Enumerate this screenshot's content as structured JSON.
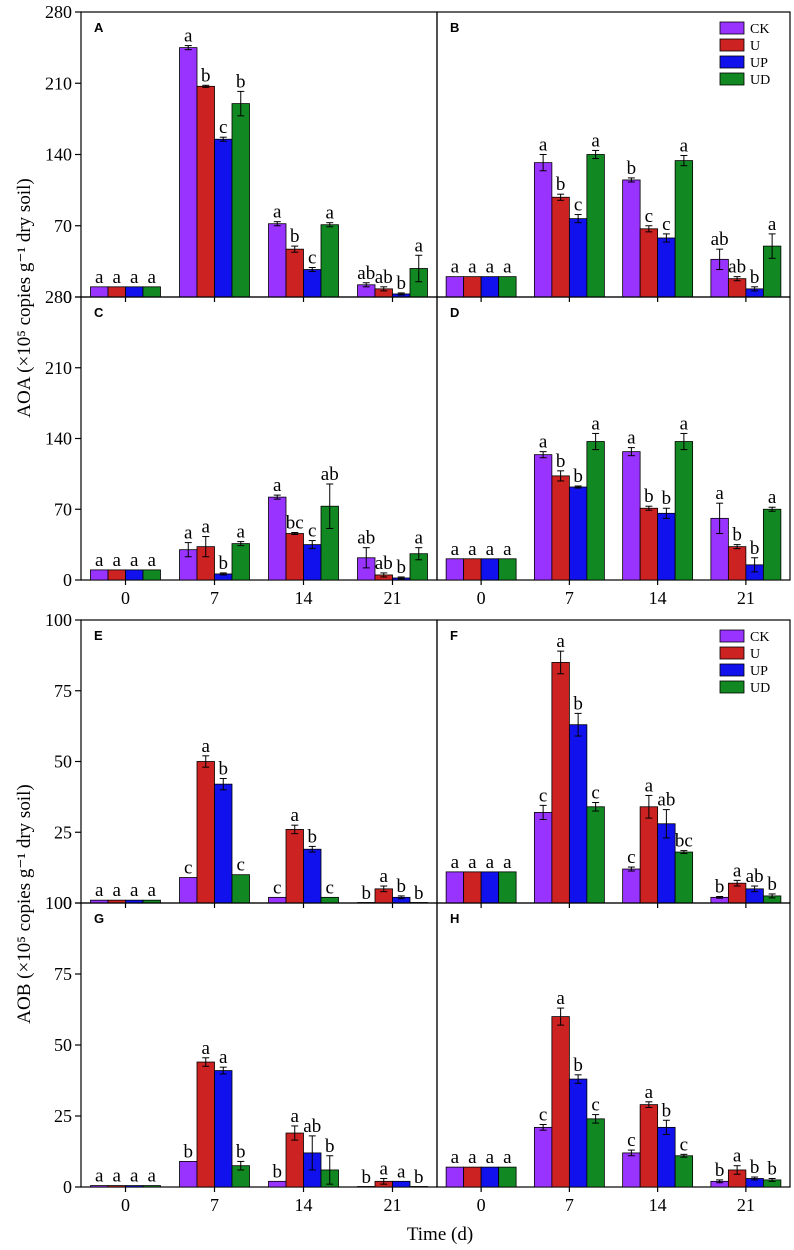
{
  "colors": {
    "CK": "#9933ff",
    "U": "#cc2222",
    "UP": "#1111ee",
    "UD": "#118822"
  },
  "figure": {
    "xlabel": "Time (d)",
    "ylabel_aoa": "AOA (×10⁵ copies g⁻¹ dry soil)",
    "ylabel_aob": "AOB (×10⁵ copies g⁻¹ dry soil)"
  },
  "legend": [
    "CK",
    "U",
    "UP",
    "UD"
  ],
  "chart_data": [
    {
      "panel": "A",
      "type": "bar",
      "categories": [
        "0",
        "7",
        "14",
        "21"
      ],
      "xlabel": "",
      "ylabel": "AOA (×10⁵ copies g⁻¹ dry soil)",
      "ylim": [
        0,
        280
      ],
      "yticks": [
        0,
        70,
        140,
        210,
        280
      ],
      "series": [
        {
          "name": "CK",
          "values": [
            10,
            245,
            72,
            12
          ],
          "errors": [
            0,
            2,
            2,
            2
          ],
          "letters": [
            "a",
            "a",
            "a",
            "ab"
          ]
        },
        {
          "name": "U",
          "values": [
            10,
            207,
            47,
            8
          ],
          "errors": [
            0,
            1,
            3,
            2
          ],
          "letters": [
            "a",
            "b",
            "b",
            "ab"
          ]
        },
        {
          "name": "UP",
          "values": [
            10,
            155,
            27,
            3
          ],
          "errors": [
            0,
            2,
            2,
            1
          ],
          "letters": [
            "a",
            "c",
            "c",
            "b"
          ]
        },
        {
          "name": "UD",
          "values": [
            10,
            190,
            71,
            28
          ],
          "errors": [
            0,
            12,
            2,
            13
          ],
          "letters": [
            "a",
            "b",
            "a",
            "a"
          ]
        }
      ]
    },
    {
      "panel": "B",
      "type": "bar",
      "categories": [
        "0",
        "7",
        "14",
        "21"
      ],
      "xlabel": "",
      "ylabel": "",
      "ylim": [
        0,
        280
      ],
      "yticks": [
        0,
        70,
        140,
        210,
        280
      ],
      "series": [
        {
          "name": "CK",
          "values": [
            20,
            132,
            115,
            37
          ],
          "errors": [
            0,
            8,
            2,
            10
          ],
          "letters": [
            "a",
            "a",
            "b",
            "ab"
          ]
        },
        {
          "name": "U",
          "values": [
            20,
            98,
            67,
            18
          ],
          "errors": [
            0,
            3,
            3,
            2
          ],
          "letters": [
            "a",
            "b",
            "c",
            "ab"
          ]
        },
        {
          "name": "UP",
          "values": [
            20,
            77,
            58,
            8
          ],
          "errors": [
            0,
            4,
            4,
            2
          ],
          "letters": [
            "a",
            "c",
            "c",
            "b"
          ]
        },
        {
          "name": "UD",
          "values": [
            20,
            140,
            134,
            50
          ],
          "errors": [
            0,
            4,
            5,
            12
          ],
          "letters": [
            "a",
            "a",
            "a",
            "a"
          ]
        }
      ]
    },
    {
      "panel": "C",
      "type": "bar",
      "categories": [
        "0",
        "7",
        "14",
        "21"
      ],
      "xlabel": "",
      "ylabel": "",
      "ylim": [
        0,
        280
      ],
      "yticks": [
        0,
        70,
        140,
        210,
        280
      ],
      "series": [
        {
          "name": "CK",
          "values": [
            10,
            30,
            82,
            22
          ],
          "errors": [
            0,
            7,
            2,
            10
          ],
          "letters": [
            "a",
            "a",
            "a",
            "ab"
          ]
        },
        {
          "name": "U",
          "values": [
            10,
            33,
            46,
            5
          ],
          "errors": [
            0,
            10,
            1,
            2
          ],
          "letters": [
            "a",
            "a",
            "bc",
            "ab"
          ]
        },
        {
          "name": "UP",
          "values": [
            10,
            6,
            35,
            2
          ],
          "errors": [
            0,
            1,
            4,
            1
          ],
          "letters": [
            "a",
            "b",
            "c",
            "b"
          ]
        },
        {
          "name": "UD",
          "values": [
            10,
            36,
            73,
            26
          ],
          "errors": [
            0,
            2,
            22,
            6
          ],
          "letters": [
            "a",
            "a",
            "ab",
            "a"
          ]
        }
      ]
    },
    {
      "panel": "D",
      "type": "bar",
      "categories": [
        "0",
        "7",
        "14",
        "21"
      ],
      "xlabel": "",
      "ylabel": "",
      "ylim": [
        0,
        280
      ],
      "yticks": [
        0,
        70,
        140,
        210,
        280
      ],
      "series": [
        {
          "name": "CK",
          "values": [
            21,
            124,
            127,
            61
          ],
          "errors": [
            0,
            3,
            4,
            15
          ],
          "letters": [
            "a",
            "a",
            "a",
            "a"
          ]
        },
        {
          "name": "U",
          "values": [
            21,
            103,
            71,
            33
          ],
          "errors": [
            0,
            5,
            2,
            2
          ],
          "letters": [
            "a",
            "b",
            "b",
            "b"
          ]
        },
        {
          "name": "UP",
          "values": [
            21,
            92,
            66,
            15
          ],
          "errors": [
            0,
            1,
            5,
            7
          ],
          "letters": [
            "a",
            "b",
            "b",
            "b"
          ]
        },
        {
          "name": "UD",
          "values": [
            21,
            137,
            137,
            70
          ],
          "errors": [
            0,
            8,
            8,
            2
          ],
          "letters": [
            "a",
            "a",
            "a",
            "a"
          ]
        }
      ]
    },
    {
      "panel": "E",
      "type": "bar",
      "categories": [
        "0",
        "7",
        "14",
        "21"
      ],
      "xlabel": "",
      "ylabel": "AOB (×10⁵ copies g⁻¹ dry soil)",
      "ylim": [
        0,
        100
      ],
      "yticks": [
        0,
        25,
        50,
        75,
        100
      ],
      "series": [
        {
          "name": "CK",
          "values": [
            1,
            9,
            2,
            0
          ],
          "errors": [
            0,
            0,
            0,
            0
          ],
          "letters": [
            "a",
            "c",
            "c",
            "b"
          ]
        },
        {
          "name": "U",
          "values": [
            1,
            50,
            26,
            5
          ],
          "errors": [
            0,
            2,
            1.5,
            1
          ],
          "letters": [
            "a",
            "a",
            "a",
            "a"
          ]
        },
        {
          "name": "UP",
          "values": [
            1,
            42,
            19,
            2
          ],
          "errors": [
            0,
            2,
            1,
            0.5
          ],
          "letters": [
            "a",
            "b",
            "b",
            "b"
          ]
        },
        {
          "name": "UD",
          "values": [
            1,
            10,
            2,
            0
          ],
          "errors": [
            0,
            0,
            0,
            0
          ],
          "letters": [
            "a",
            "c",
            "c",
            "b"
          ]
        }
      ]
    },
    {
      "panel": "F",
      "type": "bar",
      "categories": [
        "0",
        "7",
        "14",
        "21"
      ],
      "xlabel": "",
      "ylabel": "",
      "ylim": [
        0,
        100
      ],
      "yticks": [
        0,
        25,
        50,
        75,
        100
      ],
      "series": [
        {
          "name": "CK",
          "values": [
            11,
            32,
            12,
            2
          ],
          "errors": [
            0,
            2.5,
            0.7,
            0.3
          ],
          "letters": [
            "a",
            "c",
            "c",
            "b"
          ]
        },
        {
          "name": "U",
          "values": [
            11,
            85,
            34,
            7
          ],
          "errors": [
            0,
            4,
            4,
            1
          ],
          "letters": [
            "a",
            "a",
            "a",
            "a"
          ]
        },
        {
          "name": "UP",
          "values": [
            11,
            63,
            28,
            5
          ],
          "errors": [
            0,
            4,
            5,
            1
          ],
          "letters": [
            "a",
            "b",
            "ab",
            "ab"
          ]
        },
        {
          "name": "UD",
          "values": [
            11,
            34,
            18,
            2.5
          ],
          "errors": [
            0,
            1.5,
            0.5,
            0.7
          ],
          "letters": [
            "a",
            "c",
            "bc",
            "b"
          ]
        }
      ]
    },
    {
      "panel": "G",
      "type": "bar",
      "categories": [
        "0",
        "7",
        "14",
        "21"
      ],
      "xlabel": "",
      "ylabel": "",
      "ylim": [
        0,
        100
      ],
      "yticks": [
        0,
        25,
        50,
        75,
        100
      ],
      "series": [
        {
          "name": "CK",
          "values": [
            0.5,
            9,
            2,
            0
          ],
          "errors": [
            0,
            0,
            0,
            0
          ],
          "letters": [
            "a",
            "b",
            "b",
            "b"
          ]
        },
        {
          "name": "U",
          "values": [
            0.5,
            44,
            19,
            2
          ],
          "errors": [
            0,
            1.5,
            2.5,
            1
          ],
          "letters": [
            "a",
            "a",
            "a",
            "a"
          ]
        },
        {
          "name": "UP",
          "values": [
            0.5,
            41,
            12,
            2
          ],
          "errors": [
            0,
            1.2,
            6,
            0
          ],
          "letters": [
            "a",
            "a",
            "ab",
            "a"
          ]
        },
        {
          "name": "UD",
          "values": [
            0.5,
            7.5,
            6,
            0
          ],
          "errors": [
            0,
            1.5,
            5,
            0
          ],
          "letters": [
            "a",
            "b",
            "b",
            "b"
          ]
        }
      ]
    },
    {
      "panel": "H",
      "type": "bar",
      "categories": [
        "0",
        "7",
        "14",
        "21"
      ],
      "xlabel": "Time (d)",
      "ylabel": "",
      "ylim": [
        0,
        100
      ],
      "yticks": [
        0,
        25,
        50,
        75,
        100
      ],
      "series": [
        {
          "name": "CK",
          "values": [
            7,
            21,
            12,
            2
          ],
          "errors": [
            0,
            1,
            1,
            0.5
          ],
          "letters": [
            "a",
            "c",
            "c",
            "b"
          ]
        },
        {
          "name": "U",
          "values": [
            7,
            60,
            29,
            6
          ],
          "errors": [
            0,
            3,
            1,
            1.5
          ],
          "letters": [
            "a",
            "a",
            "a",
            "a"
          ]
        },
        {
          "name": "UP",
          "values": [
            7,
            38,
            21,
            3
          ],
          "errors": [
            0,
            1.5,
            2.5,
            0.5
          ],
          "letters": [
            "a",
            "b",
            "b",
            "b"
          ]
        },
        {
          "name": "UD",
          "values": [
            7,
            24,
            11,
            2.5
          ],
          "errors": [
            0,
            1.5,
            0.5,
            0.5
          ],
          "letters": [
            "a",
            "c",
            "c",
            "b"
          ]
        }
      ]
    }
  ]
}
